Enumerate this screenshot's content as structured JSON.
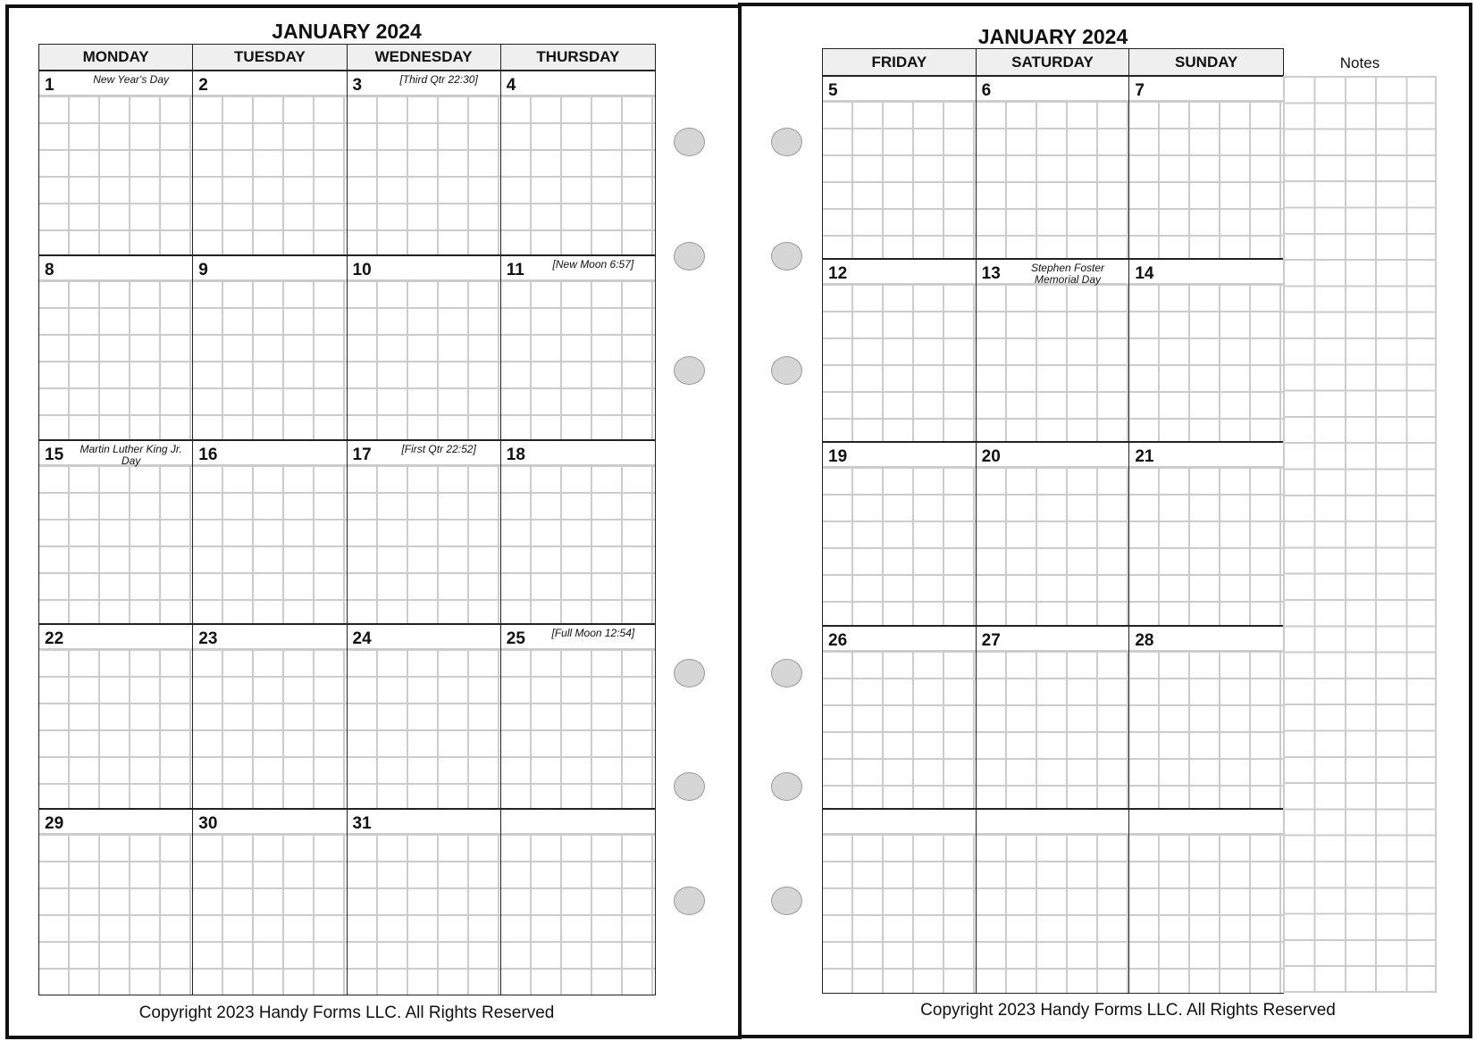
{
  "left": {
    "title": "JANUARY 2024",
    "columns": [
      "MONDAY",
      "TUESDAY",
      "WEDNESDAY",
      "THURSDAY"
    ],
    "weeks": [
      [
        {
          "day": "1",
          "note": "New Year's Day"
        },
        {
          "day": "2",
          "note": ""
        },
        {
          "day": "3",
          "note": "[Third Qtr 22:30]"
        },
        {
          "day": "4",
          "note": ""
        }
      ],
      [
        {
          "day": "8",
          "note": ""
        },
        {
          "day": "9",
          "note": ""
        },
        {
          "day": "10",
          "note": ""
        },
        {
          "day": "11",
          "note": "[New Moon 6:57]"
        }
      ],
      [
        {
          "day": "15",
          "note": "Martin Luther King Jr. Day"
        },
        {
          "day": "16",
          "note": ""
        },
        {
          "day": "17",
          "note": "[First Qtr 22:52]"
        },
        {
          "day": "18",
          "note": ""
        }
      ],
      [
        {
          "day": "22",
          "note": ""
        },
        {
          "day": "23",
          "note": ""
        },
        {
          "day": "24",
          "note": ""
        },
        {
          "day": "25",
          "note": "[Full Moon 12:54]"
        }
      ],
      [
        {
          "day": "29",
          "note": ""
        },
        {
          "day": "30",
          "note": ""
        },
        {
          "day": "31",
          "note": ""
        },
        {
          "day": "",
          "note": ""
        }
      ]
    ],
    "copyright": "Copyright 2023 Handy Forms LLC. All Rights Reserved"
  },
  "right": {
    "title": "JANUARY 2024",
    "columns": [
      "FRIDAY",
      "SATURDAY",
      "SUNDAY"
    ],
    "notes_label": "Notes",
    "weeks": [
      [
        {
          "day": "5",
          "note": ""
        },
        {
          "day": "6",
          "note": ""
        },
        {
          "day": "7",
          "note": ""
        }
      ],
      [
        {
          "day": "12",
          "note": ""
        },
        {
          "day": "13",
          "note": "Stephen Foster Memorial Day"
        },
        {
          "day": "14",
          "note": ""
        }
      ],
      [
        {
          "day": "19",
          "note": ""
        },
        {
          "day": "20",
          "note": ""
        },
        {
          "day": "21",
          "note": ""
        }
      ],
      [
        {
          "day": "26",
          "note": ""
        },
        {
          "day": "27",
          "note": ""
        },
        {
          "day": "28",
          "note": ""
        }
      ],
      [
        {
          "day": "",
          "note": ""
        },
        {
          "day": "",
          "note": ""
        },
        {
          "day": "",
          "note": ""
        }
      ]
    ],
    "copyright": "Copyright 2023 Handy Forms LLC. All Rights Reserved"
  },
  "colors": {
    "border": "#111111",
    "header_bg": "#efefef",
    "grid_line": "#cccccc",
    "hole": "#d6d6d6"
  },
  "binder_holes": {
    "left_page": 6,
    "right_page": 6
  }
}
